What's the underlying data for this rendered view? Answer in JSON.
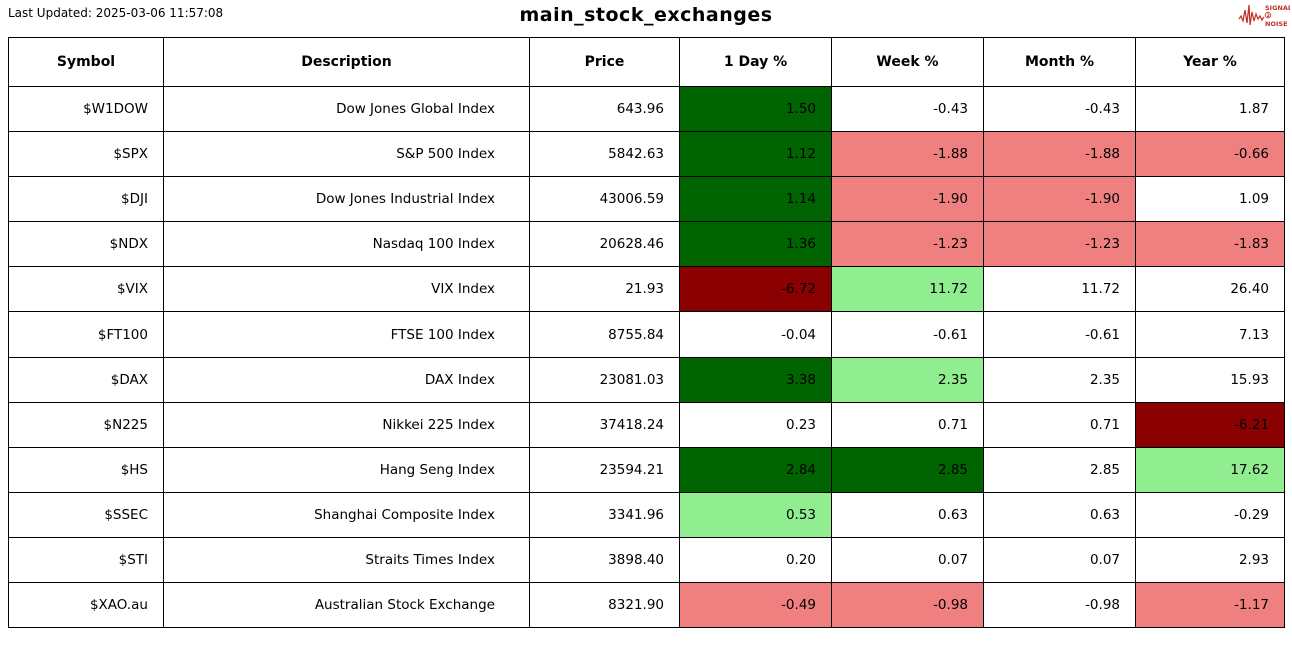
{
  "header": {
    "last_updated": "Last Updated: 2025-03-06 11:57:08",
    "title": "main_stock_exchanges"
  },
  "logo": {
    "word_top": "SIGNAL",
    "word_mid": "2",
    "word_bottom": "NOISE",
    "color": "#c03028"
  },
  "chart_data": {
    "type": "table",
    "title": "main_stock_exchanges",
    "last_updated": "2025-03-06 11:57:08",
    "columns": [
      "Symbol",
      "Description",
      "Price",
      "1 Day %",
      "Week %",
      "Month %",
      "Year %"
    ],
    "column_keys": [
      "symbol",
      "description",
      "price",
      "day_pct",
      "week_pct",
      "month_pct",
      "year_pct"
    ],
    "palette": {
      "darkgreen": "#006400",
      "lightgreen": "#90EE90",
      "lightcoral": "#F08080",
      "darkred": "#8B0000",
      "none": "#FFFFFF"
    },
    "rows": [
      {
        "values": [
          "$W1DOW",
          "Dow Jones Global Index",
          "643.96",
          "1.50",
          "-0.43",
          "-0.43",
          "1.87"
        ],
        "bg": [
          "none",
          "none",
          "none",
          "darkgreen",
          "none",
          "none",
          "none"
        ]
      },
      {
        "values": [
          "$SPX",
          "S&P 500 Index",
          "5842.63",
          "1.12",
          "-1.88",
          "-1.88",
          "-0.66"
        ],
        "bg": [
          "none",
          "none",
          "none",
          "darkgreen",
          "lightcoral",
          "lightcoral",
          "lightcoral"
        ]
      },
      {
        "values": [
          "$DJI",
          "Dow Jones Industrial Index",
          "43006.59",
          "1.14",
          "-1.90",
          "-1.90",
          "1.09"
        ],
        "bg": [
          "none",
          "none",
          "none",
          "darkgreen",
          "lightcoral",
          "lightcoral",
          "none"
        ]
      },
      {
        "values": [
          "$NDX",
          "Nasdaq 100 Index",
          "20628.46",
          "1.36",
          "-1.23",
          "-1.23",
          "-1.83"
        ],
        "bg": [
          "none",
          "none",
          "none",
          "darkgreen",
          "lightcoral",
          "lightcoral",
          "lightcoral"
        ]
      },
      {
        "values": [
          "$VIX",
          "VIX Index",
          "21.93",
          "-6.72",
          "11.72",
          "11.72",
          "26.40"
        ],
        "bg": [
          "none",
          "none",
          "none",
          "darkred",
          "lightgreen",
          "none",
          "none"
        ]
      },
      {
        "values": [
          "$FT100",
          "FTSE 100 Index",
          "8755.84",
          "-0.04",
          "-0.61",
          "-0.61",
          "7.13"
        ],
        "bg": [
          "none",
          "none",
          "none",
          "none",
          "none",
          "none",
          "none"
        ]
      },
      {
        "values": [
          "$DAX",
          "DAX Index",
          "23081.03",
          "3.38",
          "2.35",
          "2.35",
          "15.93"
        ],
        "bg": [
          "none",
          "none",
          "none",
          "darkgreen",
          "lightgreen",
          "none",
          "none"
        ]
      },
      {
        "values": [
          "$N225",
          "Nikkei 225 Index",
          "37418.24",
          "0.23",
          "0.71",
          "0.71",
          "-6.21"
        ],
        "bg": [
          "none",
          "none",
          "none",
          "none",
          "none",
          "none",
          "darkred"
        ]
      },
      {
        "values": [
          "$HS",
          "Hang Seng Index",
          "23594.21",
          "2.84",
          "2.85",
          "2.85",
          "17.62"
        ],
        "bg": [
          "none",
          "none",
          "none",
          "darkgreen",
          "darkgreen",
          "none",
          "lightgreen"
        ]
      },
      {
        "values": [
          "$SSEC",
          "Shanghai Composite Index",
          "3341.96",
          "0.53",
          "0.63",
          "0.63",
          "-0.29"
        ],
        "bg": [
          "none",
          "none",
          "none",
          "lightgreen",
          "none",
          "none",
          "none"
        ]
      },
      {
        "values": [
          "$STI",
          "Straits Times Index",
          "3898.40",
          "0.20",
          "0.07",
          "0.07",
          "2.93"
        ],
        "bg": [
          "none",
          "none",
          "none",
          "none",
          "none",
          "none",
          "none"
        ]
      },
      {
        "values": [
          "$XAO.au",
          "Australian Stock Exchange",
          "8321.90",
          "-0.49",
          "-0.98",
          "-0.98",
          "-1.17"
        ],
        "bg": [
          "none",
          "none",
          "none",
          "lightcoral",
          "lightcoral",
          "none",
          "lightcoral"
        ]
      }
    ]
  }
}
